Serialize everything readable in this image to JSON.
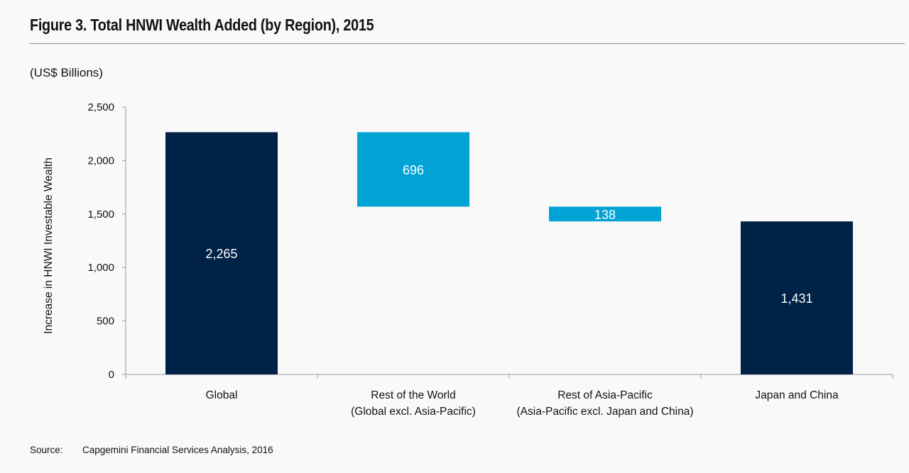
{
  "figure": {
    "title": "Figure 3. Total HNWI Wealth Added (by Region), 2015",
    "units": "(US$ Billions)",
    "source_label": "Source:",
    "source_text": "Capgemini Financial Services Analysis, 2016"
  },
  "chart_data": {
    "type": "bar",
    "subtype": "waterfall",
    "title": "Figure 3. Total HNWI Wealth Added (by Region), 2015",
    "units": "(US$ Billions)",
    "ylabel": "Increase in HNWI Investable Wealth",
    "xlabel": "",
    "ylim": [
      0,
      2500
    ],
    "yticks": [
      0,
      500,
      1000,
      1500,
      2000,
      2500
    ],
    "ytick_labels": [
      "0",
      "500",
      "1,000",
      "1,500",
      "2,000",
      "2,500"
    ],
    "grid": false,
    "bars": [
      {
        "category": [
          "Global"
        ],
        "kind": "total",
        "start": 0,
        "end": 2265,
        "label": "2,265",
        "color": "#002247"
      },
      {
        "category": [
          "Rest of the World",
          "(Global excl. Asia-Pacific)"
        ],
        "kind": "decrease",
        "start": 1569,
        "end": 2265,
        "label": "696",
        "color": "#00a3d4"
      },
      {
        "category": [
          "Rest of Asia-Pacific",
          "(Asia-Pacific excl. Japan and China)"
        ],
        "kind": "decrease",
        "start": 1431,
        "end": 1569,
        "label": "138",
        "color": "#00a3d4"
      },
      {
        "category": [
          "Japan and China"
        ],
        "kind": "total",
        "start": 0,
        "end": 1431,
        "label": "1,431",
        "color": "#002247"
      }
    ]
  }
}
